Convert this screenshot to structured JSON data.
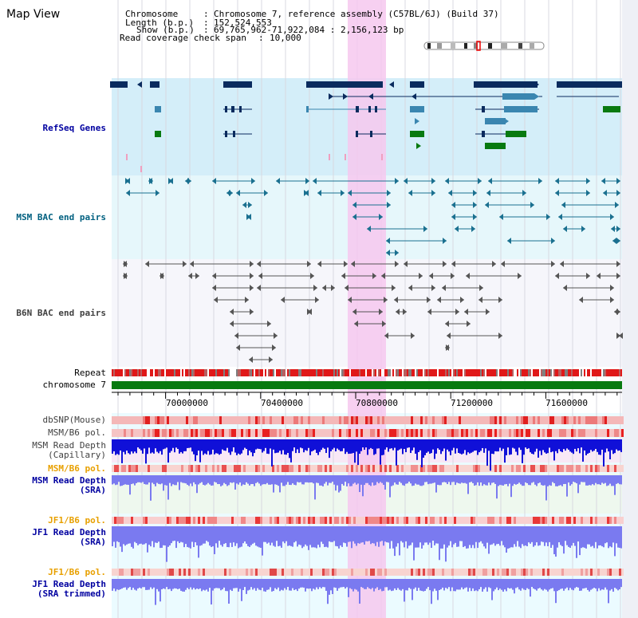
{
  "app": {
    "title": "Map View"
  },
  "header": {
    "chromosome_label": "Chromosome",
    "chromosome_value": "Chromosome 7, reference assembly (C57BL/6J) (Build 37)",
    "length_label": "Length (b.p.)",
    "length_value": "152,524,553",
    "show_label": "Show (b.p.)",
    "show_value": "69,765,962-71,922,084 : 2,156,123 bp",
    "coverage_label": "Read coverage check span",
    "coverage_value": "10,000"
  },
  "tracks": {
    "refseq": "RefSeq Genes",
    "msm_bac": "MSM BAC end pairs",
    "b6n_bac": "B6N BAC end pairs",
    "repeat": "Repeat",
    "chromosome": "chromosome 7",
    "dbsnp": "dbSNP(Mouse)",
    "msm_b6_pol_cap": "MSM/B6 pol.",
    "msm_depth_cap_1": "MSM Read Depth",
    "msm_depth_cap_2": "(Capillary)",
    "msm_b6_pol_sra": "MSM/B6 pol.",
    "msm_depth_sra_1": "MSM Read Depth",
    "msm_depth_sra_2": "(SRA)",
    "jf1_b6_pol": "JF1/B6 pol.",
    "jf1_depth_1": "JF1 Read Depth",
    "jf1_depth_2": "(SRA)",
    "jf1_b6_pol_t": "JF1/B6 pol.",
    "jf1_depth_t_1": "JF1 Read Depth",
    "jf1_depth_t_2": "(SRA trimmed)"
  },
  "axis": {
    "ticks": [
      "70000000",
      "70400000",
      "70800000",
      "71200000",
      "71600000"
    ]
  },
  "colors": {
    "gene_dark": "#0a2b5e",
    "gene_mid": "#3a86b0",
    "gene_green": "#087a10",
    "msm_bac": "#1a7090",
    "b6n_bac": "#555555",
    "highlight": "#f6c8ef",
    "label_blue": "#0000a0",
    "label_teal": "#006080",
    "label_orange": "#e8a000",
    "label_grey": "#404040"
  }
}
